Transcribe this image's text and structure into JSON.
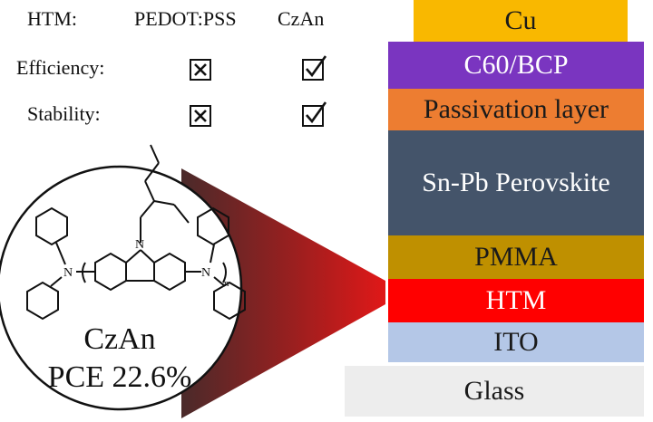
{
  "comparison": {
    "htm_label": "HTM:",
    "pedot_label": "PEDOT:PSS",
    "czan_label": "CzAn",
    "rows": [
      {
        "label": "Efficiency:",
        "pedot": "cross-box-icon",
        "czan": "check-box-icon"
      },
      {
        "label": "Stability:",
        "pedot": "cross-box-icon",
        "czan": "check-box-icon"
      }
    ]
  },
  "molecule": {
    "name": "CzAn",
    "pce": "PCE 22.6%",
    "atom_n": "N",
    "subscript_n": "n"
  },
  "stack": [
    {
      "label": "Cu",
      "color": "#F9B800",
      "text_color": "#1a1a1a"
    },
    {
      "label": "C60/BCP",
      "color": "#7A35C0",
      "text_color": "#ffffff"
    },
    {
      "label": "Passivation layer",
      "color": "#ED7D31",
      "text_color": "#1a1a1a"
    },
    {
      "label": "Sn-Pb Perovskite",
      "color": "#44546A",
      "text_color": "#ffffff"
    },
    {
      "label": "PMMA",
      "color": "#BF9000",
      "text_color": "#1a1a1a"
    },
    {
      "label": "HTM",
      "color": "#FF0000",
      "text_color": "#ffffff"
    },
    {
      "label": "ITO",
      "color": "#B4C7E7",
      "text_color": "#1a1a1a"
    },
    {
      "label": "Glass",
      "color": "#EDEDED",
      "text_color": "#1a1a1a"
    }
  ]
}
